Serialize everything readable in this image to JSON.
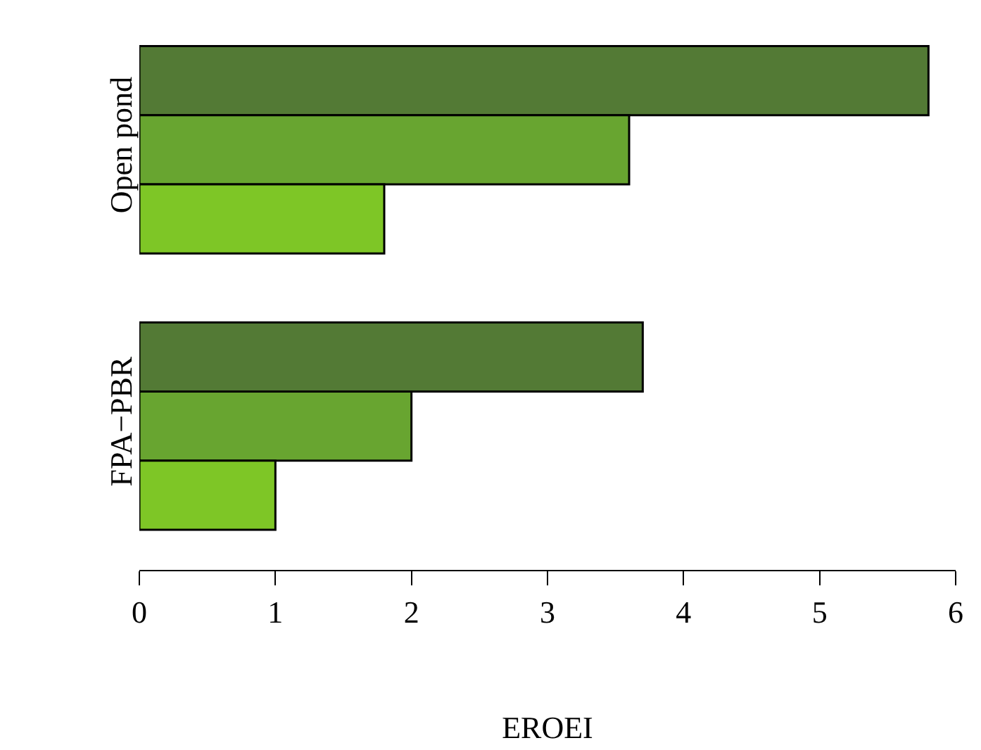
{
  "chart_data": {
    "type": "bar",
    "orientation": "horizontal",
    "xlabel": "EROEI",
    "categories": [
      "Open pond",
      "FPA−PBR"
    ],
    "series": [
      {
        "color": "#537a35",
        "values": [
          5.8,
          3.7
        ]
      },
      {
        "color": "#68a530",
        "values": [
          3.6,
          2.0
        ]
      },
      {
        "color": "#7ec626",
        "values": [
          1.8,
          1.0
        ]
      }
    ],
    "xlim": [
      0,
      6
    ],
    "xticks": [
      0,
      1,
      2,
      3,
      4,
      5,
      6
    ]
  }
}
